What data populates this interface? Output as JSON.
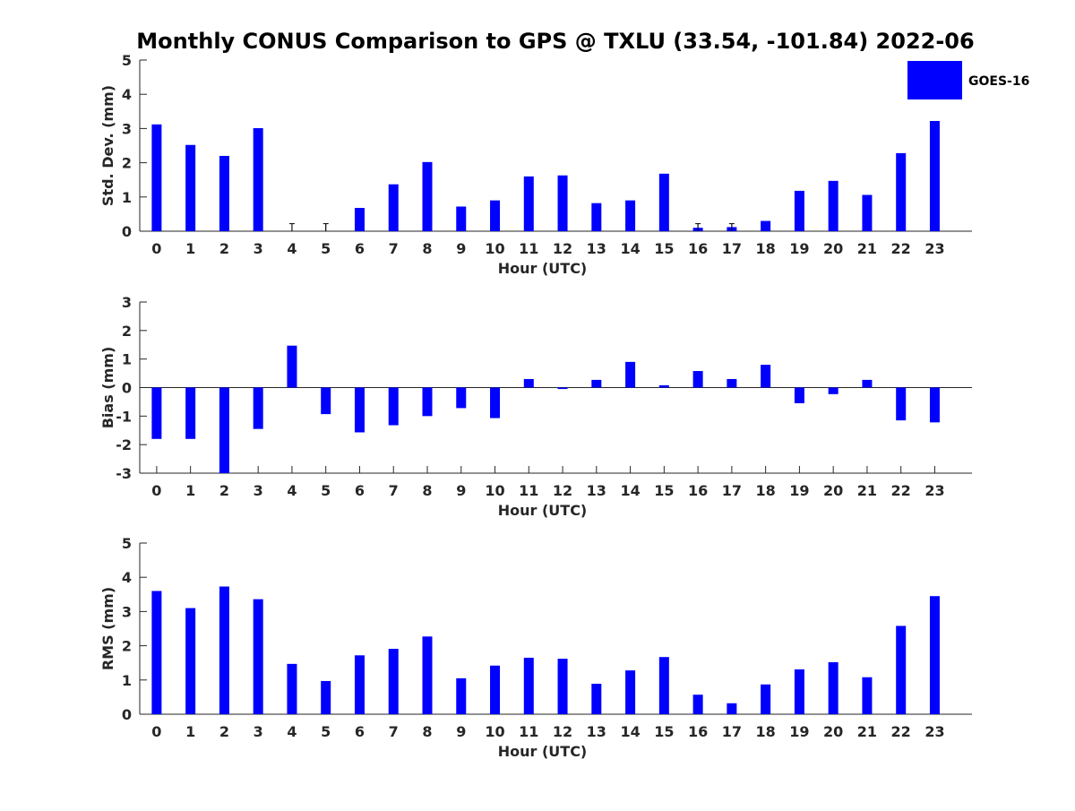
{
  "title": "Monthly CONUS Comparison to GPS @ TXLU (33.54, -101.84) 2022-06",
  "bar_color": "#0000ff",
  "legend": {
    "label": "GOES-16"
  },
  "chart_data": [
    {
      "type": "bar",
      "title": "",
      "xlabel": "Hour (UTC)",
      "ylabel": "Std. Dev. (mm)",
      "ylim": [
        0,
        5
      ],
      "yticks": [
        0,
        1,
        2,
        3,
        4,
        5
      ],
      "categories": [
        "0",
        "1",
        "2",
        "3",
        "4",
        "5",
        "6",
        "7",
        "8",
        "9",
        "10",
        "11",
        "12",
        "13",
        "14",
        "15",
        "16",
        "17",
        "18",
        "19",
        "20",
        "21",
        "22",
        "23"
      ],
      "series": [
        {
          "name": "GOES-16",
          "values": [
            3.12,
            2.52,
            2.2,
            3.01,
            0,
            0,
            0.68,
            1.37,
            2.02,
            0.72,
            0.9,
            1.6,
            1.63,
            0.82,
            0.9,
            1.68,
            0.1,
            0.12,
            0.3,
            1.18,
            1.47,
            1.06,
            2.28,
            3.22
          ]
        }
      ],
      "error_bars": [
        {
          "category": "4",
          "low": 0,
          "high": 0.22
        },
        {
          "category": "5",
          "low": 0,
          "high": 0.22
        },
        {
          "category": "16",
          "low": 0,
          "high": 0.22
        },
        {
          "category": "17",
          "low": 0,
          "high": 0.22
        }
      ]
    },
    {
      "type": "bar",
      "title": "",
      "xlabel": "Hour (UTC)",
      "ylabel": "Bias (mm)",
      "ylim": [
        -3,
        3
      ],
      "yticks": [
        -3,
        -2,
        -1,
        0,
        1,
        2,
        3
      ],
      "categories": [
        "0",
        "1",
        "2",
        "3",
        "4",
        "5",
        "6",
        "7",
        "8",
        "9",
        "10",
        "11",
        "12",
        "13",
        "14",
        "15",
        "16",
        "17",
        "18",
        "19",
        "20",
        "21",
        "22",
        "23"
      ],
      "series": [
        {
          "values": [
            -1.8,
            -1.8,
            -3.0,
            -1.45,
            1.47,
            -0.93,
            -1.57,
            -1.32,
            -1.0,
            -0.72,
            -1.07,
            0.3,
            -0.05,
            0.27,
            0.9,
            0.08,
            0.58,
            0.3,
            0.8,
            -0.55,
            -0.23,
            0.27,
            -1.15,
            -1.22
          ]
        }
      ]
    },
    {
      "type": "bar",
      "title": "",
      "xlabel": "Hour (UTC)",
      "ylabel": "RMS (mm)",
      "ylim": [
        0,
        5
      ],
      "yticks": [
        0,
        1,
        2,
        3,
        4,
        5
      ],
      "categories": [
        "0",
        "1",
        "2",
        "3",
        "4",
        "5",
        "6",
        "7",
        "8",
        "9",
        "10",
        "11",
        "12",
        "13",
        "14",
        "15",
        "16",
        "17",
        "18",
        "19",
        "20",
        "21",
        "22",
        "23"
      ],
      "series": [
        {
          "values": [
            3.6,
            3.1,
            3.73,
            3.36,
            1.47,
            0.97,
            1.72,
            1.91,
            2.27,
            1.05,
            1.42,
            1.65,
            1.62,
            0.89,
            1.28,
            1.67,
            0.57,
            0.32,
            0.87,
            1.31,
            1.52,
            1.08,
            2.58,
            3.45
          ]
        }
      ]
    }
  ]
}
